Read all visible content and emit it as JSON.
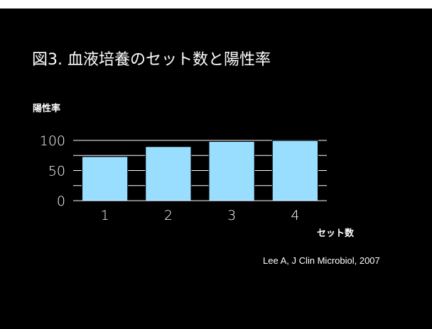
{
  "slide": {
    "title": "図3. 血液培養のセット数と陽性率",
    "citation": "Lee A, J Clin Microbiol, 2007",
    "background": "#000000"
  },
  "chart_data": {
    "type": "bar",
    "categories": [
      "1",
      "2",
      "3",
      "4"
    ],
    "values": [
      73.1,
      89.7,
      98.2,
      99.8
    ],
    "title": "",
    "xlabel": "セット数",
    "ylabel": "陽性率",
    "ylim": [
      0,
      100
    ],
    "yticks": [
      0,
      50,
      100
    ],
    "ytick_labels": [
      "0",
      "50",
      "100"
    ],
    "grid": true,
    "legend": "none",
    "bar_color": "#99ddff",
    "bar_edge_color": "#000000"
  }
}
